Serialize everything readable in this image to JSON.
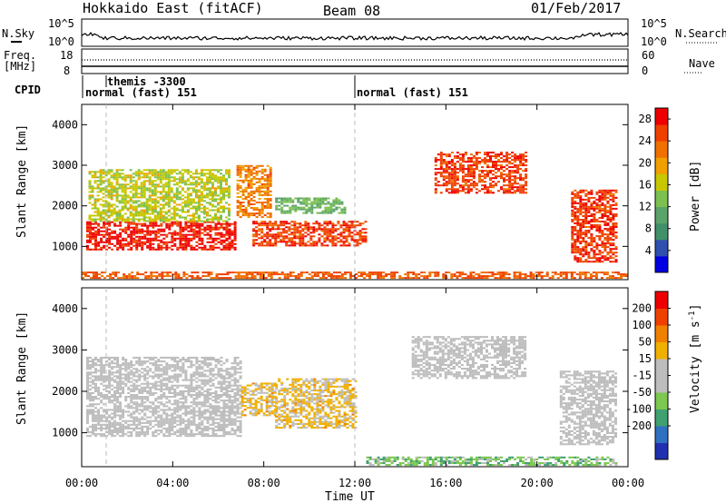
{
  "header": {
    "title": "Hokkaido East (fitACF)",
    "beam": "Beam 08",
    "date": "01/Feb/2017"
  },
  "strips": {
    "nsky": {
      "label": "N.Sky",
      "ticks": [
        "10^5",
        "10^0"
      ]
    },
    "nsearch": {
      "label": "N.Search",
      "ticks": [
        "10^5",
        "10^0"
      ]
    },
    "freq": {
      "label_line1": "Freq.",
      "label_line2": "[MHz]",
      "ticks": [
        "18",
        "8"
      ]
    },
    "nave": {
      "label": "Nave",
      "ticks": [
        "60",
        "0"
      ]
    },
    "cpid": {
      "label": "CPID",
      "entries": [
        {
          "text": "themis -3300"
        },
        {
          "text": "normal (fast) 151"
        },
        {
          "text": "normal (fast) 151"
        }
      ]
    }
  },
  "colors": {
    "power_scale": [
      "#0000e0",
      "#3050b0",
      "#40906a",
      "#5aa36a",
      "#7bc050",
      "#c8c800",
      "#f0a000",
      "#f07000",
      "#f04000",
      "#ee0000"
    ],
    "velocity_scale": [
      "#2030b0",
      "#3070c0",
      "#40a070",
      "#7cc850",
      "#bdbdbd",
      "#bdbdbd",
      "#f0b000",
      "#f08000",
      "#f04000",
      "#ee0000"
    ]
  },
  "chart_data": [
    {
      "type": "heatmap",
      "title": "",
      "xlabel": "Time UT",
      "ylabel": "Slant Range [km]",
      "x_ticks": [
        "00:00",
        "04:00",
        "08:00",
        "12:00",
        "16:00",
        "20:00",
        "00:00"
      ],
      "y_ticks": [
        "1000",
        "2000",
        "3000",
        "4000"
      ],
      "xlim": [
        0,
        24
      ],
      "ylim": [
        180,
        4500
      ],
      "grid": false,
      "colorbar": {
        "label": "Power [dB]",
        "ticks": [
          "4",
          "8",
          "12",
          "16",
          "20",
          "24",
          "28"
        ],
        "range": [
          0,
          30
        ]
      },
      "regions": [
        {
          "t0": 0.2,
          "t1": 6.8,
          "r0": 900,
          "r1": 1600,
          "value": 28
        },
        {
          "t0": 0.3,
          "t1": 6.5,
          "r0": 1600,
          "r1": 2900,
          "value": 16
        },
        {
          "t0": 6.8,
          "t1": 8.3,
          "r0": 1700,
          "r1": 3000,
          "value": 22
        },
        {
          "t0": 7.5,
          "t1": 12.5,
          "r0": 1000,
          "r1": 1600,
          "value": 26
        },
        {
          "t0": 8.5,
          "t1": 11.5,
          "r0": 1800,
          "r1": 2200,
          "value": 12
        },
        {
          "t0": 15.5,
          "t1": 19.5,
          "r0": 2300,
          "r1": 3300,
          "value": 26
        },
        {
          "t0": 21.5,
          "t1": 23.5,
          "r0": 600,
          "r1": 2400,
          "value": 26
        },
        {
          "t0": 0.0,
          "t1": 24.0,
          "r0": 200,
          "r1": 350,
          "value": 24
        }
      ]
    },
    {
      "type": "heatmap",
      "title": "",
      "xlabel": "Time UT",
      "ylabel": "Slant Range [km]",
      "x_ticks": [
        "00:00",
        "04:00",
        "08:00",
        "12:00",
        "16:00",
        "20:00",
        "00:00"
      ],
      "y_ticks": [
        "1000",
        "2000",
        "3000",
        "4000"
      ],
      "xlim": [
        0,
        24
      ],
      "ylim": [
        180,
        4500
      ],
      "grid": false,
      "colorbar": {
        "label": "Velocity [m s^-1]",
        "ticks": [
          "200",
          "100",
          "50",
          "15",
          "-15",
          "-50",
          "-100",
          "-200"
        ],
        "range": [
          -250,
          250
        ]
      },
      "regions": [
        {
          "t0": 0.2,
          "t1": 7.0,
          "r0": 900,
          "r1": 2800,
          "value": 0
        },
        {
          "t0": 7.0,
          "t1": 8.5,
          "r0": 1400,
          "r1": 2200,
          "value": 60
        },
        {
          "t0": 8.5,
          "t1": 12.0,
          "r0": 1100,
          "r1": 2300,
          "value": 60
        },
        {
          "t0": 14.5,
          "t1": 19.5,
          "r0": 2300,
          "r1": 3300,
          "value": 0
        },
        {
          "t0": 21.0,
          "t1": 23.5,
          "r0": 700,
          "r1": 2500,
          "value": 0
        },
        {
          "t0": 12.5,
          "t1": 23.5,
          "r0": 200,
          "r1": 400,
          "value": -80
        }
      ]
    }
  ]
}
